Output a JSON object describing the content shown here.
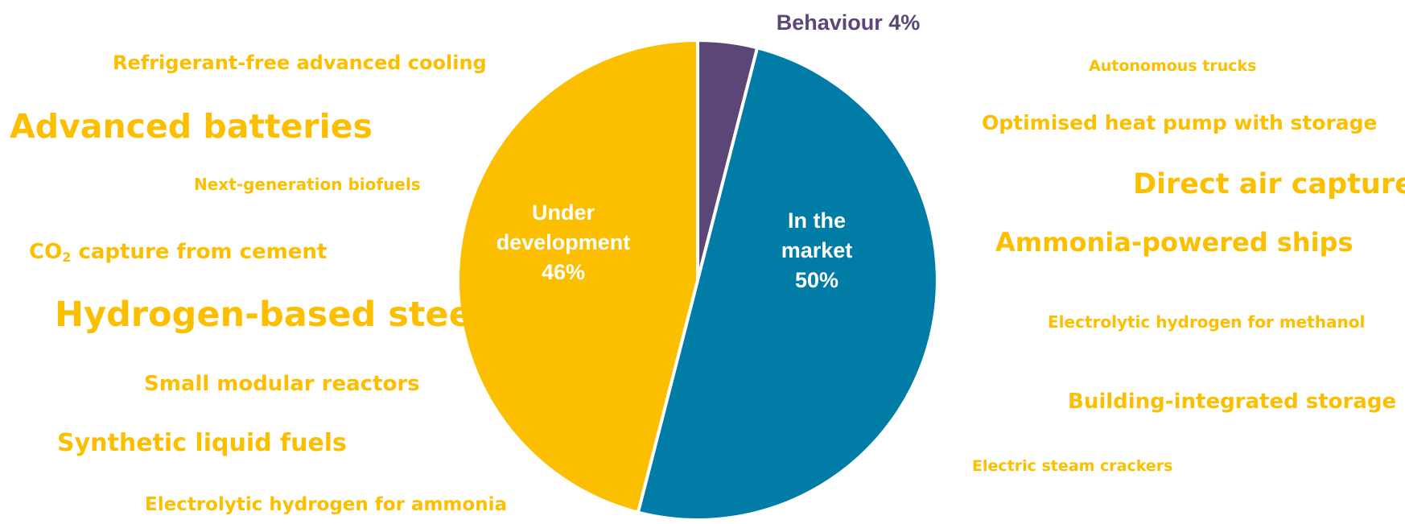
{
  "chart_data": {
    "type": "pie",
    "slices": [
      {
        "key": "behaviour",
        "label_lines": [
          "Behaviour 4%"
        ],
        "value": 4,
        "color": "#5b4677"
      },
      {
        "key": "market",
        "label_lines": [
          "In the",
          "market",
          "50%"
        ],
        "value": 50,
        "color": "#007ca6"
      },
      {
        "key": "development",
        "label_lines": [
          "Under",
          "development",
          "46%"
        ],
        "value": 46,
        "color": "#fcbf00"
      }
    ]
  },
  "technologies": {
    "left": {
      "refrigerant_free_cooling": "Refrigerant-free advanced cooling",
      "advanced_batteries": "Advanced batteries",
      "next_gen_biofuels": "Next-generation biofuels",
      "co2_capture_cement_prefix": "CO",
      "co2_capture_cement_sub": "2",
      "co2_capture_cement_suffix": " capture from cement",
      "hydrogen_based_steel": "Hydrogen-based steel",
      "small_modular_reactors": "Small modular reactors",
      "synthetic_liquid_fuels": "Synthetic liquid fuels",
      "electrolytic_hydrogen_ammonia": "Electrolytic hydrogen for ammonia"
    },
    "right": {
      "autonomous_trucks": "Autonomous trucks",
      "optimised_heat_pump": "Optimised heat pump with storage",
      "direct_air_capture": "Direct air capture",
      "ammonia_powered_ships": "Ammonia-powered ships",
      "electrolytic_hydrogen_methanol": "Electrolytic hydrogen for methanol",
      "building_integrated_storage": "Building-integrated storage",
      "electric_steam_crackers": "Electric steam crackers"
    }
  }
}
